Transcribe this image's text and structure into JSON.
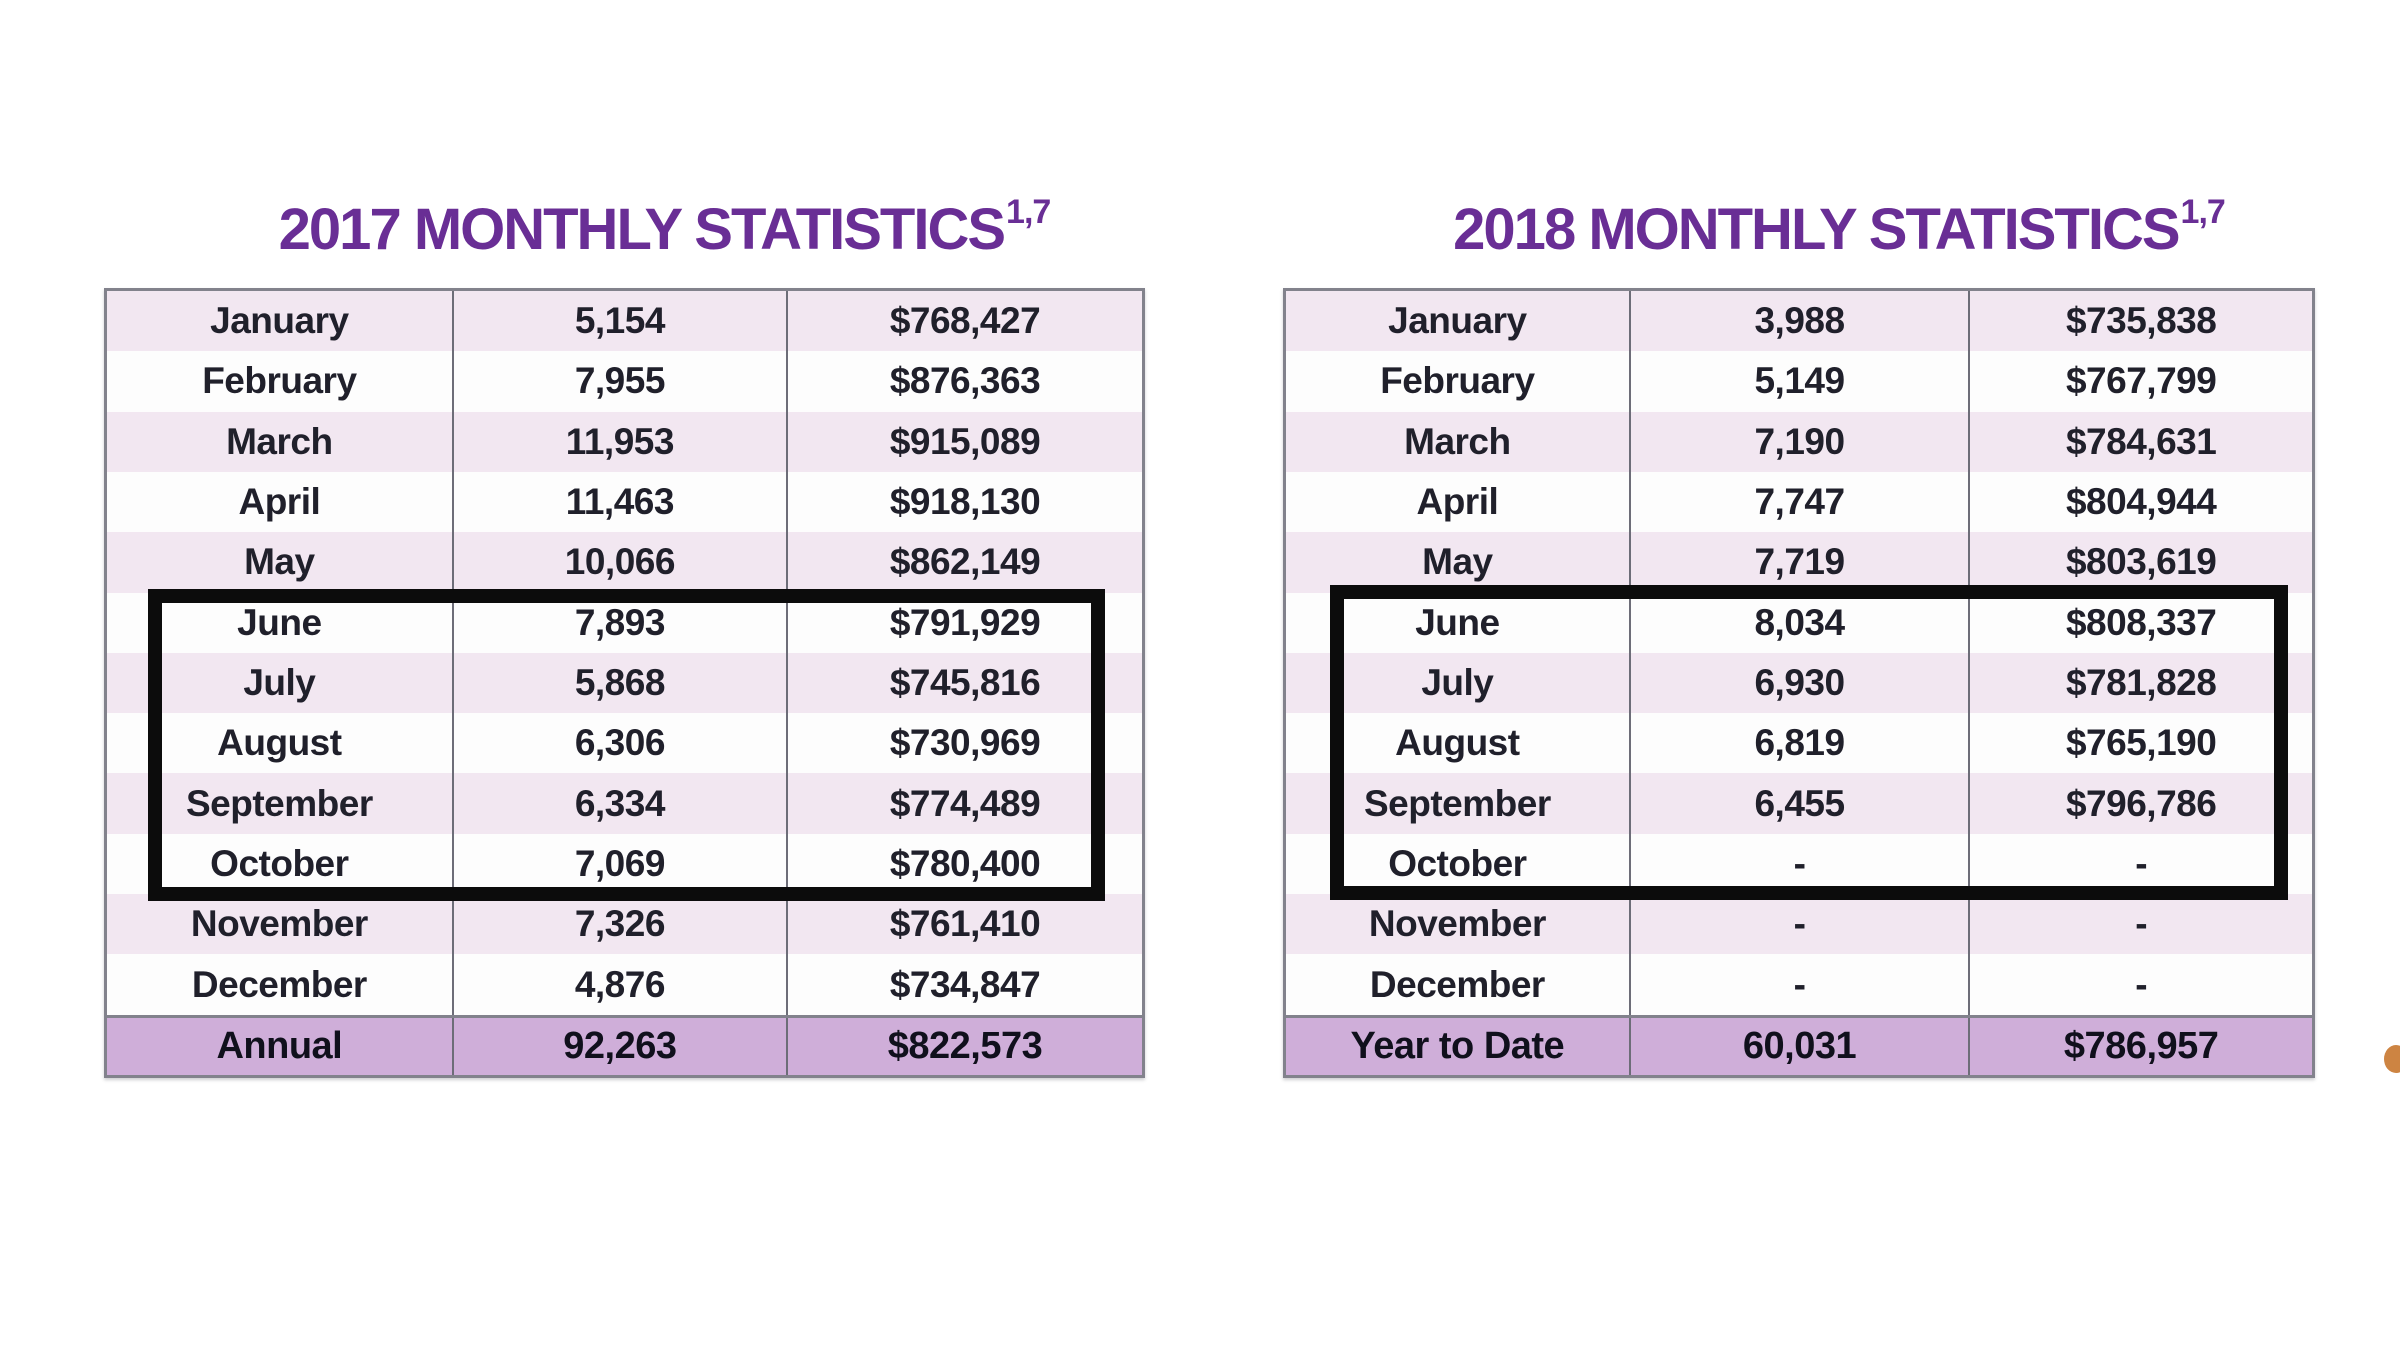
{
  "page": {
    "background": "#ffffff"
  },
  "colors": {
    "title_purple": "#692e95",
    "stripe_pink": "#f2e7f1",
    "total_row_purple": "#cfaed9",
    "grid_border_gray": "#82828c",
    "grid_divider_gray": "#6d6d78",
    "highlight_black": "#0c0c0c",
    "edge_artifact_orange": "#c8772e"
  },
  "tables": [
    {
      "title": "2017 MONTHLY STATISTICS",
      "title_superscript": "1,7",
      "rows": [
        {
          "cells": [
            "January",
            "5,154",
            "$768,427"
          ]
        },
        {
          "cells": [
            "February",
            "7,955",
            "$876,363"
          ]
        },
        {
          "cells": [
            "March",
            "11,953",
            "$915,089"
          ]
        },
        {
          "cells": [
            "April",
            "11,463",
            "$918,130"
          ]
        },
        {
          "cells": [
            "May",
            "10,066",
            "$862,149"
          ]
        },
        {
          "cells": [
            "June",
            "7,893",
            "$791,929"
          ]
        },
        {
          "cells": [
            "July",
            "5,868",
            "$745,816"
          ]
        },
        {
          "cells": [
            "August",
            "6,306",
            "$730,969"
          ]
        },
        {
          "cells": [
            "September",
            "6,334",
            "$774,489"
          ]
        },
        {
          "cells": [
            "October",
            "7,069",
            "$780,400"
          ]
        },
        {
          "cells": [
            "November",
            "7,326",
            "$761,410"
          ]
        },
        {
          "cells": [
            "December",
            "4,876",
            "$734,847"
          ]
        },
        {
          "cells": [
            "Annual",
            "92,263",
            "$822,573"
          ],
          "total": true
        }
      ],
      "highlight": {
        "from_month": "June",
        "to_month": "October",
        "start_row_index": 5,
        "end_row_index": 9
      }
    },
    {
      "title": "2018 MONTHLY STATISTICS",
      "title_superscript": "1,7",
      "rows": [
        {
          "cells": [
            "January",
            "3,988",
            "$735,838"
          ]
        },
        {
          "cells": [
            "February",
            "5,149",
            "$767,799"
          ]
        },
        {
          "cells": [
            "March",
            "7,190",
            "$784,631"
          ]
        },
        {
          "cells": [
            "April",
            "7,747",
            "$804,944"
          ]
        },
        {
          "cells": [
            "May",
            "7,719",
            "$803,619"
          ]
        },
        {
          "cells": [
            "June",
            "8,034",
            "$808,337"
          ]
        },
        {
          "cells": [
            "July",
            "6,930",
            "$781,828"
          ]
        },
        {
          "cells": [
            "August",
            "6,819",
            "$765,190"
          ]
        },
        {
          "cells": [
            "September",
            "6,455",
            "$796,786"
          ]
        },
        {
          "cells": [
            "October",
            "-",
            "-"
          ]
        },
        {
          "cells": [
            "November",
            "-",
            "-"
          ]
        },
        {
          "cells": [
            "December",
            "-",
            "-"
          ]
        },
        {
          "cells": [
            "Year to Date",
            "60,031",
            "$786,957"
          ],
          "total": true
        }
      ],
      "highlight": {
        "from_month": "June",
        "to_month": "October",
        "start_row_index": 5,
        "end_row_index": 9
      }
    }
  ]
}
